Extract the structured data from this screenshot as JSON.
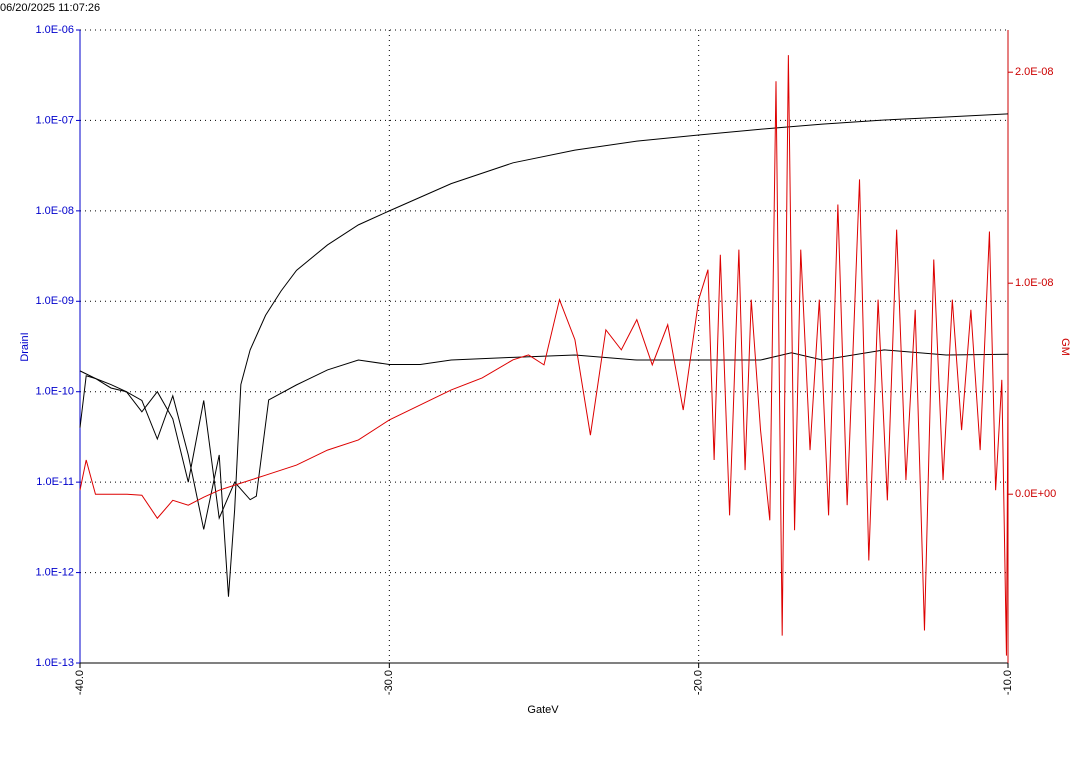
{
  "chart_data": {
    "type": "line",
    "title": "06/20/2025 11:07:26",
    "x_label": "GateV",
    "y_label": "DrainI",
    "y2_label": "GM",
    "xlim": [
      -40,
      -10
    ],
    "xticks": [
      {
        "value": -40,
        "label": "-40.0"
      },
      {
        "value": -30,
        "label": "-30.0"
      },
      {
        "value": -20,
        "label": "-20.0"
      },
      {
        "value": -10,
        "label": "-10.0"
      }
    ],
    "ylim": [
      1e-13,
      1e-06
    ],
    "yscale": "log",
    "yticks": [
      {
        "value": 1e-13,
        "label": "1.0E-13"
      },
      {
        "value": 1e-12,
        "label": "1.0E-12"
      },
      {
        "value": 1e-11,
        "label": "1.0E-11"
      },
      {
        "value": 1e-10,
        "label": "1.0E-10"
      },
      {
        "value": 1e-09,
        "label": "1.0E-09"
      },
      {
        "value": 1e-08,
        "label": "1.0E-08"
      },
      {
        "value": 1e-07,
        "label": "1.0E-07"
      },
      {
        "value": 1e-06,
        "label": "1.0E-06"
      }
    ],
    "y2lim": [
      -8e-09,
      2.2e-08
    ],
    "y2ticks": [
      {
        "value": 0,
        "label": "0.0E+00"
      },
      {
        "value": 1e-08,
        "label": "1.0E-08"
      },
      {
        "value": 2e-08,
        "label": "2.0E-08"
      }
    ],
    "grid": true,
    "y_axis_color": "#0000cc",
    "y2_axis_color": "#cc0000",
    "series": [
      {
        "color": "#000000",
        "x": [
          -40,
          -39.8,
          -39.5,
          -39,
          -38.5,
          -38,
          -37.5,
          -37,
          -36.5,
          -36,
          -35.5,
          -35.2,
          -35,
          -34.8,
          -34.5,
          -34,
          -33.5,
          -33,
          -32,
          -31,
          -30,
          -28,
          -26,
          -24,
          -22,
          -20,
          -18,
          -16,
          -14,
          -12,
          -10
        ],
        "values": [
          4e-11,
          1.5e-10,
          1.4e-10,
          1.2e-10,
          1e-10,
          8e-11,
          3e-11,
          9e-11,
          2e-11,
          3e-12,
          2e-11,
          5.4e-13,
          5e-12,
          1.2e-10,
          2.9e-10,
          7e-10,
          1.3e-09,
          2.2e-09,
          4.2e-09,
          7e-09,
          1e-08,
          2e-08,
          3.4e-08,
          4.7e-08,
          5.9e-08,
          6.9e-08,
          8e-08,
          9.1e-08,
          1.01e-07,
          1.09e-07,
          1.18e-07
        ]
      },
      {
        "color": "#000000",
        "x": [
          -40,
          -39.5,
          -39,
          -38.5,
          -38,
          -37.5,
          -37,
          -36.5,
          -36,
          -35.5,
          -35,
          -34.5,
          -34.3,
          -33.9,
          -33,
          -32,
          -31,
          -30,
          -29,
          -28,
          -26,
          -24,
          -22,
          -20,
          -18,
          -17,
          -16,
          -14,
          -12,
          -10
        ],
        "values": [
          1.7e-10,
          1.4e-10,
          1.1e-10,
          1e-10,
          6e-11,
          1e-10,
          5e-11,
          1e-11,
          8e-11,
          4e-12,
          1e-11,
          6.4e-12,
          7e-12,
          8.1e-11,
          1.19e-10,
          1.74e-10,
          2.24e-10,
          2e-10,
          2e-10,
          2.24e-10,
          2.4e-10,
          2.55e-10,
          2.24e-10,
          2.24e-10,
          2.24e-10,
          2.7e-10,
          2.24e-10,
          2.9e-10,
          2.55e-10,
          2.6e-10
        ]
      },
      {
        "color": "#dd0000",
        "axis": "y2",
        "x": [
          -40,
          -39.8,
          -39.5,
          -39,
          -38.5,
          -38,
          -37.5,
          -37,
          -36.5,
          -36,
          -35.5,
          -35,
          -34,
          -33,
          -32,
          -31,
          -30,
          -29,
          -28,
          -27,
          -26,
          -25.5,
          -25,
          -24.5,
          -24,
          -23.5,
          -23,
          -22.5,
          -22,
          -21.5,
          -21,
          -20.5,
          -20,
          -19.7,
          -19.5,
          -19.3,
          -19,
          -18.7,
          -18.5,
          -18.3,
          -18,
          -17.7,
          -17.5,
          -17.3,
          -17.1,
          -16.9,
          -16.7,
          -16.4,
          -16.1,
          -15.8,
          -15.5,
          -15.2,
          -14.8,
          -14.5,
          -14.2,
          -13.9,
          -13.6,
          -13.3,
          -13,
          -12.7,
          -12.4,
          -12.1,
          -11.8,
          -11.5,
          -11.2,
          -10.9,
          -10.6,
          -10.4,
          -10.2,
          -10.05,
          -10
        ],
        "values": [
          1.9e-10,
          1.62e-09,
          0,
          0,
          0,
          -5e-11,
          -1.14e-09,
          -2.9e-10,
          -5.2e-10,
          -1.4e-10,
          1.9e-10,
          4.3e-10,
          9e-10,
          1.38e-09,
          2.09e-09,
          2.57e-09,
          3.52e-09,
          4.23e-09,
          4.94e-09,
          5.51e-09,
          6.37e-09,
          6.6e-09,
          6.13e-09,
          9.22e-09,
          7.32e-09,
          2.8e-09,
          7.79e-09,
          6.84e-09,
          8.27e-09,
          6.13e-09,
          8.03e-09,
          3.99e-09,
          9.22e-09,
          1.064e-08,
          1.62e-09,
          1.135e-08,
          -1e-09,
          1.159e-08,
          1.14e-09,
          9.22e-09,
          3.04e-09,
          -1.24e-09,
          1.957e-08,
          -6.7e-09,
          2.081e-08,
          -1.71e-09,
          1.159e-08,
          2.09e-09,
          9.22e-09,
          -1e-09,
          1.373e-08,
          -5.2e-10,
          1.492e-08,
          -3.14e-09,
          9.22e-09,
          -2.9e-10,
          1.254e-08,
          6.7e-10,
          8.74e-09,
          -6.46e-09,
          1.112e-08,
          6.7e-10,
          9.22e-09,
          3.04e-09,
          8.74e-09,
          2.09e-09,
          1.245e-08,
          1.9e-10,
          5.42e-09,
          -7.65e-09,
          5.18e-09
        ]
      }
    ]
  }
}
